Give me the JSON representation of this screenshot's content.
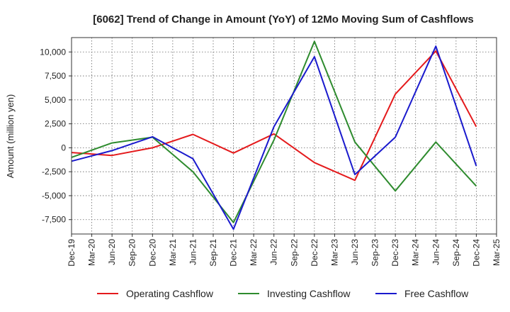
{
  "chart_data": {
    "type": "line",
    "title": "[6062]  Trend of Change in Amount (YoY) of 12Mo Moving Sum of Cashflows",
    "xlabel": "",
    "ylabel": "Amount (million yen)",
    "ylim": [
      -9000,
      11500
    ],
    "yticks": [
      -7500,
      -5000,
      -2500,
      0,
      2500,
      5000,
      7500,
      10000
    ],
    "ytick_labels": [
      "-7,500",
      "-5,000",
      "-2,500",
      "0",
      "2,500",
      "5,000",
      "7,500",
      "10,000"
    ],
    "grid": true,
    "legend_position": "bottom",
    "categories": [
      "Dec-19",
      "Mar-20",
      "Jun-20",
      "Sep-20",
      "Dec-20",
      "Mar-21",
      "Jun-21",
      "Sep-21",
      "Dec-21",
      "Mar-22",
      "Jun-22",
      "Sep-22",
      "Dec-22",
      "Mar-23",
      "Jun-23",
      "Sep-23",
      "Dec-23",
      "Mar-24",
      "Jun-24",
      "Sep-24",
      "Dec-24",
      "Mar-25"
    ],
    "series": [
      {
        "name": "Operating Cashflow",
        "color": "#e41a1c",
        "values": [
          -500,
          null,
          -800,
          null,
          0,
          null,
          1400,
          null,
          -550,
          null,
          1450,
          null,
          -1550,
          null,
          -3400,
          null,
          5600,
          null,
          10100,
          null,
          2200,
          null
        ]
      },
      {
        "name": "Investing Cashflow",
        "color": "#2e8b2e",
        "values": [
          -1000,
          null,
          500,
          null,
          1100,
          null,
          -2500,
          null,
          -7800,
          null,
          800,
          null,
          11100,
          null,
          600,
          null,
          -4500,
          null,
          600,
          null,
          -4000,
          null
        ]
      },
      {
        "name": "Free Cashflow",
        "color": "#1a1acd",
        "values": [
          -1400,
          null,
          -300,
          null,
          1150,
          null,
          -1150,
          null,
          -8500,
          null,
          2200,
          null,
          9500,
          null,
          -2800,
          null,
          1100,
          null,
          10600,
          null,
          -1900,
          null
        ]
      }
    ]
  }
}
